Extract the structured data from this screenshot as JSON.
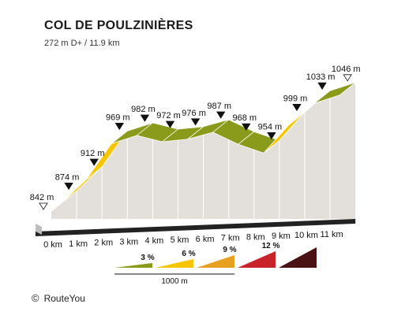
{
  "header": {
    "title": "COL DE POULZINIÈRES",
    "subtitle": "272 m D+ / 11.9 km"
  },
  "chart_data": {
    "type": "area",
    "title": "COL DE POULZINIÈRES",
    "subtitle": "272 m D+ / 11.9 km",
    "xlabel": "",
    "ylabel": "",
    "x_unit": "km",
    "y_unit": "m",
    "x_ticks": [
      "0 km",
      "1 km",
      "2 km",
      "3 km",
      "4 km",
      "5 km",
      "6 km",
      "7 km",
      "8 km",
      "9 km",
      "10 km",
      "11 km"
    ],
    "points": [
      {
        "km": 0,
        "elev": 842,
        "label": "842 m",
        "marker": "open"
      },
      {
        "km": 1,
        "elev": 874,
        "label": "874 m",
        "marker": "filled"
      },
      {
        "km": 2,
        "elev": 912,
        "label": "912 m",
        "marker": "filled"
      },
      {
        "km": 3,
        "elev": 969,
        "label": "969 m",
        "marker": "filled"
      },
      {
        "km": 3.7,
        "elev": 982,
        "label": "982 m",
        "marker": "filled"
      },
      {
        "km": 4.5,
        "elev": 972,
        "label": "972 m",
        "marker": "filled"
      },
      {
        "km": 5.5,
        "elev": 976,
        "label": "976 m",
        "marker": "filled"
      },
      {
        "km": 7.0,
        "elev": 987,
        "label": "987 m",
        "marker": "filled"
      },
      {
        "km": 8.0,
        "elev": 968,
        "label": "968 m",
        "marker": "filled"
      },
      {
        "km": 8.9,
        "elev": 954,
        "label": "954 m",
        "marker": "filled"
      },
      {
        "km": 9.9,
        "elev": 999,
        "label": "999 m",
        "marker": "filled"
      },
      {
        "km": 10.9,
        "elev": 1033,
        "label": "1033 m",
        "marker": "filled"
      },
      {
        "km": 11.9,
        "elev": 1046,
        "label": "1046 m",
        "marker": "open"
      }
    ],
    "segments": [
      {
        "from": 0,
        "to": 1,
        "color": "#f7c600"
      },
      {
        "from": 1,
        "to": 2,
        "color": "#f7c600"
      },
      {
        "from": 2,
        "to": 3,
        "color": "#f7c600"
      },
      {
        "from": 3,
        "to": 4,
        "color": "#8a9a1a"
      },
      {
        "from": 4,
        "to": 5,
        "color": "#8a9a1a"
      },
      {
        "from": 5,
        "to": 6,
        "color": "#8a9a1a"
      },
      {
        "from": 6,
        "to": 7,
        "color": "#8a9a1a"
      },
      {
        "from": 7,
        "to": 8,
        "color": "#8a9a1a"
      },
      {
        "from": 8,
        "to": 9,
        "color": "#8a9a1a"
      },
      {
        "from": 9,
        "to": 10,
        "color": "#f7c600"
      },
      {
        "from": 10,
        "to": 11,
        "color": "#f7c600"
      },
      {
        "from": 11,
        "to": 12,
        "color": "#8a9a1a"
      }
    ],
    "legend": {
      "items": [
        {
          "label": "3 %",
          "color": "#8a9a1a"
        },
        {
          "label": "6 %",
          "color": "#f7c600"
        },
        {
          "label": "9 %",
          "color": "#e8a020"
        },
        {
          "label": "12 %",
          "color": "#c8232a"
        },
        {
          "label": "",
          "color": "#4a1212"
        }
      ],
      "scale_label": "1000 m"
    },
    "colors": {
      "face": "#e3dfdb",
      "edge": "#ffffff",
      "base": "#222222",
      "marker_fill": "#111111",
      "marker_open": "#ffffff"
    }
  },
  "footer": {
    "copyright_symbol": "©",
    "brand": "RouteYou"
  }
}
